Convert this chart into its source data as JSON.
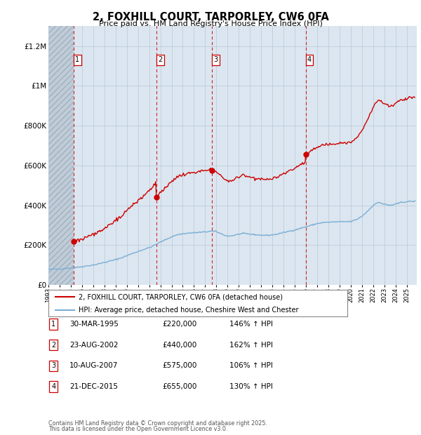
{
  "title": "2, FOXHILL COURT, TARPORLEY, CW6 0FA",
  "subtitle": "Price paid vs. HM Land Registry's House Price Index (HPI)",
  "footer1": "Contains HM Land Registry data © Crown copyright and database right 2025.",
  "footer2": "This data is licensed under the Open Government Licence v3.0.",
  "legend_line1": "2, FOXHILL COURT, TARPORLEY, CW6 0FA (detached house)",
  "legend_line2": "HPI: Average price, detached house, Cheshire West and Chester",
  "transactions": [
    {
      "num": 1,
      "date": "30-MAR-1995",
      "price": 220000,
      "hpi_pct": "146% ↑ HPI",
      "year": 1995.25
    },
    {
      "num": 2,
      "date": "23-AUG-2002",
      "price": 440000,
      "hpi_pct": "162% ↑ HPI",
      "year": 2002.64
    },
    {
      "num": 3,
      "date": "10-AUG-2007",
      "price": 575000,
      "hpi_pct": "106% ↑ HPI",
      "year": 2007.61
    },
    {
      "num": 4,
      "date": "21-DEC-2015",
      "price": 655000,
      "hpi_pct": "130% ↑ HPI",
      "year": 2015.97
    }
  ],
  "xmin": 1993.0,
  "xmax": 2025.9,
  "ymin": 0,
  "ymax": 1300000,
  "yticks": [
    0,
    200000,
    400000,
    600000,
    800000,
    1000000,
    1200000
  ],
  "ylabels": [
    "£0",
    "£200K",
    "£400K",
    "£600K",
    "£800K",
    "£1M",
    "£1.2M"
  ],
  "hatch_end_year": 1995.25,
  "bg_color": "#dce6f0",
  "hatch_color": "#c0cdd8",
  "line_color_red": "#cc0000",
  "line_color_blue": "#7aaed4",
  "grid_color": "#b8c8d8",
  "xtick_years": [
    1993,
    1994,
    1995,
    1996,
    1997,
    1998,
    1999,
    2000,
    2001,
    2002,
    2003,
    2004,
    2005,
    2006,
    2007,
    2008,
    2009,
    2010,
    2011,
    2012,
    2013,
    2014,
    2015,
    2016,
    2017,
    2018,
    2019,
    2020,
    2021,
    2022,
    2023,
    2024,
    2025
  ]
}
